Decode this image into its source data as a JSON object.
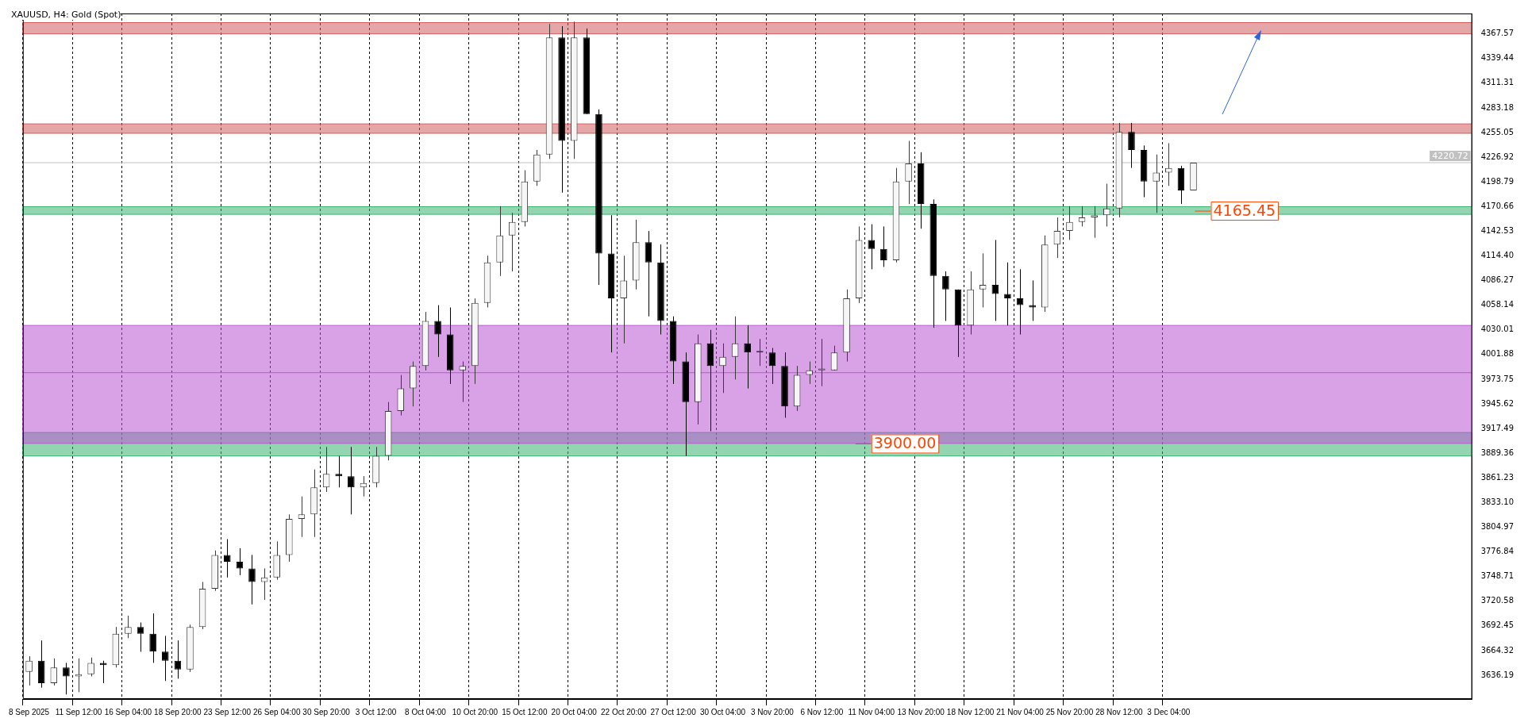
{
  "chart_data": {
    "type": "candlestick",
    "title": "XAUUSD, H4: Gold (Spot)",
    "colors": [
      "#3a3a3a",
      "#000000",
      "#3a3a3a",
      "#000000",
      "#3a3a3a",
      "#3a3a3a",
      "#000000",
      "#3a3a3a",
      "#3a3a3a",
      "#000000",
      "#000000",
      "#000000",
      "#000000",
      "#3a3a3a",
      "#3a3a3a",
      "#3a3a3a",
      "#000000",
      "#000000",
      "#000000",
      "#3a3a3a",
      "#3a3a3a",
      "#3a3a3a",
      "#3a3a3a",
      "#3a3a3a",
      "#3a3a3a",
      "#000000",
      "#000000",
      "#3a3a3a",
      "#3a3a3a",
      "#3a3a3a",
      "#3a3a3a",
      "#3a3a3a",
      "#3a3a3a",
      "#000000",
      "#000000",
      "#3a3a3a",
      "#3a3a3a",
      "#3a3a3a",
      "#3a3a3a",
      "#3a3a3a",
      "#3a3a3a",
      "#3a3a3a",
      "#3a3a3a",
      "#000000",
      "#3a3a3a",
      "#000000",
      "#000000",
      "#000000",
      "#3a3a3a",
      "#3a3a3a",
      "#000000",
      "#000000",
      "#000000",
      "#000000",
      "#3a3a3a",
      "#000000",
      "#3a3a3a",
      "#3a3a3a",
      "#000000",
      "#3a3a3a",
      "#000000",
      "#000000",
      "#3a3a3a",
      "#3a3a3a",
      "#3a3a3a",
      "#3a3a3a",
      "#3a3a3a",
      "#3a3a3a",
      "#000000",
      "#000000",
      "#3a3a3a",
      "#3a3a3a",
      "#000000",
      "#000000",
      "#000000",
      "#000000",
      "#3a3a3a",
      "#3a3a3a",
      "#000000",
      "#000000",
      "#000000",
      "#000000",
      "#3a3a3a",
      "#3a3a3a",
      "#3a3a3a",
      "#3a3a3a",
      "#3a3a3a",
      "#3a3a3a",
      "#3a3a3a",
      "#000000",
      "#000000",
      "#3a3a3a",
      "#3a3a3a",
      "#000000",
      "#3a3a3a",
      null,
      null,
      null,
      null,
      null,
      null,
      null,
      null,
      null,
      null,
      null,
      null,
      null,
      null,
      null,
      null,
      null,
      null,
      null,
      null,
      null,
      null
    ],
    "categories": [
      "8 Sep 2025",
      null,
      null,
      null,
      "11 Sep 12:00",
      null,
      null,
      null,
      "16 Sep 04:00",
      null,
      null,
      null,
      "18 Sep 20:00",
      null,
      null,
      null,
      "23 Sep 12:00",
      null,
      null,
      null,
      "26 Sep 04:00",
      null,
      null,
      null,
      "30 Sep 20:00",
      null,
      null,
      null,
      "3 Oct 12:00",
      null,
      null,
      null,
      "8 Oct 04:00",
      null,
      null,
      null,
      "10 Oct 20:00",
      null,
      null,
      null,
      "15 Oct 12:00",
      null,
      null,
      null,
      "20 Oct 04:00",
      null,
      null,
      null,
      "22 Oct 20:00",
      null,
      null,
      null,
      "27 Oct 12:00",
      null,
      null,
      null,
      "30 Oct 04:00",
      null,
      null,
      null,
      "3 Nov 20:00",
      null,
      null,
      null,
      "6 Nov 12:00",
      null,
      null,
      null,
      "11 Nov 04:00",
      null,
      null,
      null,
      "13 Nov 20:00",
      null,
      null,
      null,
      "18 Nov 12:00",
      null,
      null,
      null,
      "21 Nov 04:00",
      null,
      null,
      null,
      "25 Nov 20:00",
      null,
      null,
      null,
      "28 Nov 12:00",
      null,
      null,
      null,
      "3 Dec 04:00",
      null,
      null,
      null,
      null,
      null,
      null,
      null,
      null,
      null,
      null,
      null,
      null,
      null,
      null,
      null,
      null,
      null,
      null,
      null,
      null,
      null,
      null,
      null,
      null
    ],
    "ohlc": [
      [
        3640.0,
        3658.0,
        3624.6,
        3652.8
      ],
      [
        3652.8,
        3675.9,
        3622.0,
        3627.2
      ],
      [
        3627.2,
        3655.4,
        3624.6,
        3645.1
      ],
      [
        3645.1,
        3650.3,
        3614.3,
        3634.9
      ],
      [
        3634.9,
        3655.4,
        3616.9,
        3637.4
      ],
      [
        3637.4,
        3656.4,
        3634.9,
        3650.3
      ],
      [
        3650.3,
        3652.8,
        3627.2,
        3647.7
      ],
      [
        3647.7,
        3691.3,
        3645.1,
        3683.6
      ],
      [
        3683.6,
        3704.2,
        3678.5,
        3691.3
      ],
      [
        3691.3,
        3696.4,
        3663.1,
        3683.6
      ],
      [
        3683.6,
        3706.7,
        3650.3,
        3663.1
      ],
      [
        3663.1,
        3681.1,
        3629.7,
        3652.8
      ],
      [
        3652.8,
        3675.9,
        3632.3,
        3642.7
      ],
      [
        3642.7,
        3693.9,
        3640.0,
        3691.3
      ],
      [
        3691.3,
        3742.6,
        3688.8,
        3734.9
      ],
      [
        3734.9,
        3778.5,
        3732.4,
        3773.4
      ],
      [
        3773.4,
        3791.4,
        3747.7,
        3765.7
      ],
      [
        3765.7,
        3781.1,
        3750.3,
        3758.0
      ],
      [
        3758.0,
        3773.4,
        3717.0,
        3742.6
      ],
      [
        3742.6,
        3758.0,
        3722.1,
        3747.7
      ],
      [
        3747.7,
        3788.8,
        3745.2,
        3773.4
      ],
      [
        3773.4,
        3819.6,
        3765.7,
        3814.4
      ],
      [
        3814.4,
        3840.1,
        3793.9,
        3819.6
      ],
      [
        3819.6,
        3870.9,
        3793.9,
        3850.4
      ],
      [
        3850.4,
        3896.5,
        3845.2,
        3865.8
      ],
      [
        3865.8,
        3886.3,
        3850.4,
        3863.2
      ],
      [
        3863.2,
        3896.5,
        3819.6,
        3850.4
      ],
      [
        3850.4,
        3863.2,
        3840.1,
        3855.5
      ],
      [
        3855.5,
        3896.5,
        3850.4,
        3886.3
      ],
      [
        3886.3,
        3947.8,
        3881.2,
        3937.6
      ],
      [
        3937.6,
        3978.6,
        3932.5,
        3963.2
      ],
      [
        3963.2,
        3994.0,
        3942.7,
        3988.9
      ],
      [
        3988.9,
        4050.5,
        3983.8,
        4040.2
      ],
      [
        4040.2,
        4058.2,
        3999.2,
        4024.8
      ],
      [
        4024.8,
        4055.6,
        3968.4,
        3983.8
      ],
      [
        3983.8,
        3994.0,
        3947.8,
        3988.9
      ],
      [
        3988.9,
        4065.9,
        3968.4,
        4060.7
      ],
      [
        4060.7,
        4114.6,
        4055.6,
        4106.9
      ],
      [
        4106.9,
        4171.1,
        4091.5,
        4137.7
      ],
      [
        4137.7,
        4163.4,
        4096.7,
        4153.1
      ],
      [
        4153.1,
        4212.1,
        4147.9,
        4199.3
      ],
      [
        4199.3,
        4235.2,
        4194.2,
        4230.0
      ],
      [
        4230.0,
        4378.9,
        4225.0,
        4363.5
      ],
      [
        4363.5,
        4376.3,
        4186.5,
        4245.5
      ],
      [
        4245.5,
        4381.4,
        4225.0,
        4363.5
      ],
      [
        4363.5,
        4373.7,
        4276.2,
        4276.2
      ],
      [
        4276.2,
        4281.4,
        4081.3,
        4117.2
      ],
      [
        4117.2,
        4160.8,
        4004.3,
        4065.9
      ],
      [
        4065.9,
        4114.6,
        4014.6,
        4086.4
      ],
      [
        4086.4,
        4155.7,
        4076.1,
        4130.0
      ],
      [
        4130.0,
        4142.8,
        4045.4,
        4106.9
      ],
      [
        4106.9,
        4127.4,
        4024.8,
        4040.2
      ],
      [
        4040.2,
        4045.4,
        3968.4,
        3994.0
      ],
      [
        3994.0,
        4004.3,
        3886.3,
        3947.8
      ],
      [
        3947.8,
        4024.8,
        3922.2,
        4014.6
      ],
      [
        4014.6,
        4030.0,
        3914.5,
        3988.9
      ],
      [
        3988.9,
        4014.6,
        3958.1,
        3999.2
      ],
      [
        3999.2,
        4045.4,
        3973.5,
        4014.6
      ],
      [
        4014.6,
        4035.1,
        3963.2,
        4004.3
      ],
      [
        4004.3,
        4019.7,
        3988.9,
        4006.0
      ],
      [
        4004.3,
        4009.4,
        3968.4,
        3988.9
      ],
      [
        3988.9,
        4004.3,
        3929.9,
        3942.7
      ],
      [
        3942.7,
        3988.9,
        3937.6,
        3978.6
      ],
      [
        3978.6,
        3994.0,
        3968.4,
        3983.8
      ],
      [
        3983.8,
        4019.7,
        3965.8,
        3986.0
      ],
      [
        3983.8,
        4012.0,
        3983.8,
        4004.3
      ],
      [
        4004.3,
        4076.1,
        3994.0,
        4065.9
      ],
      [
        4065.9,
        4147.9,
        4060.7,
        4132.6
      ],
      [
        4132.6,
        4150.5,
        4099.2,
        4122.3
      ],
      [
        4122.3,
        4147.9,
        4101.8,
        4109.5
      ],
      [
        4109.5,
        4214.7,
        4106.9,
        4199.3
      ],
      [
        4199.3,
        4245.5,
        4173.6,
        4219.8
      ],
      [
        4219.8,
        4232.6,
        4145.4,
        4173.6
      ],
      [
        4173.6,
        4178.8,
        4032.5,
        4091.5
      ],
      [
        4091.5,
        4096.7,
        4040.2,
        4076.1
      ],
      [
        4076.1,
        4076.1,
        3999.2,
        4035.1
      ],
      [
        4035.1,
        4096.7,
        4024.8,
        4076.1
      ],
      [
        4076.1,
        4117.2,
        4055.6,
        4081.3
      ],
      [
        4081.3,
        4132.6,
        4040.2,
        4071.0
      ],
      [
        4071.0,
        4106.9,
        4035.1,
        4065.9
      ],
      [
        4065.9,
        4099.2,
        4024.8,
        4058.2
      ],
      [
        4058.2,
        4086.4,
        4040.2,
        4055.6
      ],
      [
        4055.6,
        4137.7,
        4050.5,
        4127.4
      ],
      [
        4127.4,
        4158.2,
        4112.0,
        4142.8
      ],
      [
        4142.8,
        4171.1,
        4132.6,
        4153.1
      ],
      [
        4153.1,
        4171.1,
        4147.9,
        4158.2
      ],
      [
        4158.2,
        4171.1,
        4135.1,
        4160.8
      ],
      [
        4160.8,
        4196.7,
        4147.9,
        4168.5
      ],
      [
        4168.5,
        4266.0,
        4158.2,
        4255.7
      ],
      [
        4255.7,
        4266.0,
        4214.7,
        4235.2
      ],
      [
        4235.2,
        4240.3,
        4181.3,
        4199.3
      ],
      [
        4199.3,
        4230.0,
        4163.4,
        4209.5
      ],
      [
        4209.5,
        4242.9,
        4194.2,
        4214.7
      ],
      [
        4214.7,
        4217.2,
        4173.6,
        4189.0
      ],
      [
        4189.0,
        4220.7,
        4189.0,
        4220.7
      ],
      null,
      null,
      null,
      null,
      null,
      null,
      null,
      null,
      null,
      null,
      null,
      null,
      null,
      null,
      null,
      null,
      null,
      null,
      null,
      null,
      null,
      null
    ],
    "ylim": [
      3609.1,
      4390.8
    ],
    "yticks": [
      3636.19,
      3664.32,
      3692.45,
      3720.58,
      3748.71,
      3776.84,
      3804.97,
      {
        "value": 3833.1,
        "label": "3833.10"
      },
      3861.23,
      3889.36,
      3917.49,
      3945.62,
      3973.75,
      4001.88,
      4030.01,
      4058.14,
      4086.27,
      {
        "value": 4114.4,
        "label": "4114.40"
      },
      4142.53,
      4170.66,
      4198.79,
      4226.92,
      4255.05,
      4283.18,
      4311.31,
      4339.44,
      4367.57
    ],
    "grid": "x",
    "bands": [
      {
        "axis": "y",
        "from": 4367.6,
        "to": 4380.4,
        "color": "#cd5c5c"
      },
      {
        "axis": "y",
        "from": 4254.2,
        "to": 4264.9,
        "color": "#cd5c5c"
      },
      {
        "axis": "y",
        "from": 4161.8,
        "to": 4170.5,
        "color": "#3cb371"
      },
      {
        "axis": "y",
        "from": 3886.3,
        "to": 3913.0,
        "color": "#3cb371"
      },
      {
        "axis": "y",
        "from": 3900.6,
        "to": 4035.1,
        "color": "#ba55d3"
      }
    ],
    "ref_lines": [
      {
        "axis": "y",
        "value": 4220.72,
        "label": "4220.72",
        "color": "#c0c0c0"
      },
      {
        "axis": "y",
        "value": 3981.2,
        "color": "#ba55d3"
      }
    ],
    "annotations": [
      {
        "text": "4165.45",
        "y": 4165.45
      },
      {
        "text": "3900.00",
        "x": "11 Nov 04:00",
        "y": 3900
      }
    ]
  }
}
